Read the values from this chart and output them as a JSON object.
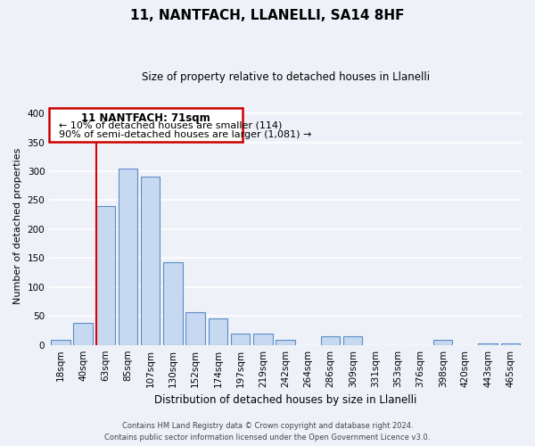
{
  "title": "11, NANTFACH, LLANELLI, SA14 8HF",
  "subtitle": "Size of property relative to detached houses in Llanelli",
  "xlabel": "Distribution of detached houses by size in Llanelli",
  "ylabel": "Number of detached properties",
  "bar_labels": [
    "18sqm",
    "40sqm",
    "63sqm",
    "85sqm",
    "107sqm",
    "130sqm",
    "152sqm",
    "174sqm",
    "197sqm",
    "219sqm",
    "242sqm",
    "264sqm",
    "286sqm",
    "309sqm",
    "331sqm",
    "353sqm",
    "376sqm",
    "398sqm",
    "420sqm",
    "443sqm",
    "465sqm"
  ],
  "bar_values": [
    8,
    38,
    240,
    305,
    290,
    143,
    56,
    46,
    20,
    20,
    8,
    0,
    15,
    15,
    0,
    0,
    0,
    8,
    0,
    3,
    3
  ],
  "bar_color": "#c6d9f0",
  "bar_edge_color": "#5b8bc9",
  "ylim": [
    0,
    410
  ],
  "yticks": [
    0,
    50,
    100,
    150,
    200,
    250,
    300,
    350,
    400
  ],
  "red_line_index": 2,
  "bar_width": 0.85,
  "annotation_title": "11 NANTFACH: 71sqm",
  "annotation_line1": "← 10% of detached houses are smaller (114)",
  "annotation_line2": "90% of semi-detached houses are larger (1,081) →",
  "footer1": "Contains HM Land Registry data © Crown copyright and database right 2024.",
  "footer2": "Contains public sector information licensed under the Open Government Licence v3.0.",
  "bg_color": "#eef2f8",
  "grid_color": "#ffffff",
  "annotation_box_facecolor": "#ffffff",
  "annotation_box_edgecolor": "#cc0000",
  "red_line_color": "#dd0000"
}
